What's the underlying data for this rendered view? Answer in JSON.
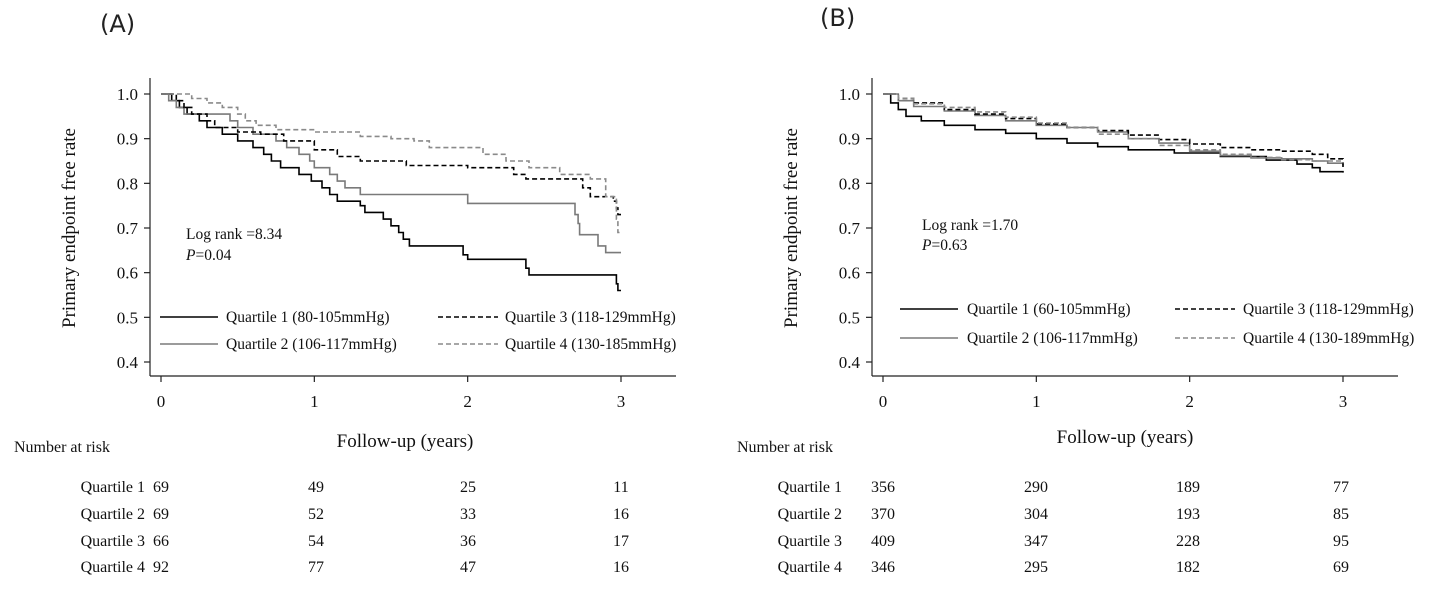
{
  "chart_data": [
    {
      "type": "line",
      "subtype": "kaplan-meier",
      "panel_label": "(A)",
      "xlabel": "Follow-up (years)",
      "ylabel": "Primary endpoint free rate",
      "xlim": [
        0,
        3
      ],
      "ylim": [
        0.4,
        1.0
      ],
      "x_ticks": [
        "0",
        "1",
        "2",
        "3"
      ],
      "y_ticks": [
        "1.0",
        "0.9",
        "0.8",
        "0.7",
        "0.6",
        "0.5",
        "0.4"
      ],
      "grid": false,
      "annotation": {
        "logrank": "Log rank =8.34",
        "p_label": "P",
        "p_value": "=0.04"
      },
      "legend_position": "bottom",
      "series": [
        {
          "name": "Quartile 1 (80-105mmHg)",
          "color": "#000000",
          "dash": "solid",
          "points": [
            [
              0,
              1.0
            ],
            [
              0.07,
              0.985
            ],
            [
              0.12,
              0.97
            ],
            [
              0.17,
              0.955
            ],
            [
              0.25,
              0.94
            ],
            [
              0.3,
              0.925
            ],
            [
              0.4,
              0.91
            ],
            [
              0.5,
              0.895
            ],
            [
              0.6,
              0.88
            ],
            [
              0.67,
              0.865
            ],
            [
              0.72,
              0.85
            ],
            [
              0.78,
              0.835
            ],
            [
              0.9,
              0.82
            ],
            [
              0.98,
              0.805
            ],
            [
              1.05,
              0.79
            ],
            [
              1.1,
              0.775
            ],
            [
              1.15,
              0.76
            ],
            [
              1.3,
              0.75
            ],
            [
              1.33,
              0.735
            ],
            [
              1.45,
              0.72
            ],
            [
              1.5,
              0.705
            ],
            [
              1.55,
              0.69
            ],
            [
              1.58,
              0.675
            ],
            [
              1.62,
              0.66
            ],
            [
              1.97,
              0.64
            ],
            [
              2.0,
              0.63
            ],
            [
              2.38,
              0.61
            ],
            [
              2.4,
              0.595
            ],
            [
              2.97,
              0.575
            ],
            [
              2.98,
              0.56
            ],
            [
              3.0,
              0.56
            ]
          ]
        },
        {
          "name": "Quartile 2 (106-117mmHg)",
          "color": "#7a7a7a",
          "dash": "solid",
          "points": [
            [
              0,
              1.0
            ],
            [
              0.05,
              0.985
            ],
            [
              0.1,
              0.97
            ],
            [
              0.15,
              0.955
            ],
            [
              0.45,
              0.94
            ],
            [
              0.5,
              0.925
            ],
            [
              0.6,
              0.91
            ],
            [
              0.75,
              0.895
            ],
            [
              0.82,
              0.88
            ],
            [
              0.9,
              0.865
            ],
            [
              0.97,
              0.85
            ],
            [
              1.0,
              0.835
            ],
            [
              1.1,
              0.82
            ],
            [
              1.15,
              0.805
            ],
            [
              1.2,
              0.79
            ],
            [
              1.3,
              0.775
            ],
            [
              2.0,
              0.755
            ],
            [
              2.7,
              0.73
            ],
            [
              2.72,
              0.71
            ],
            [
              2.73,
              0.685
            ],
            [
              2.85,
              0.66
            ],
            [
              2.9,
              0.645
            ],
            [
              3.0,
              0.645
            ]
          ]
        },
        {
          "name": "Quartile 3 (118-129mmHg)",
          "color": "#000000",
          "dash": "dashed",
          "points": [
            [
              0,
              1.0
            ],
            [
              0.1,
              0.985
            ],
            [
              0.15,
              0.97
            ],
            [
              0.2,
              0.955
            ],
            [
              0.3,
              0.94
            ],
            [
              0.35,
              0.925
            ],
            [
              0.5,
              0.915
            ],
            [
              0.65,
              0.91
            ],
            [
              0.8,
              0.895
            ],
            [
              1.0,
              0.875
            ],
            [
              1.15,
              0.86
            ],
            [
              1.3,
              0.85
            ],
            [
              1.6,
              0.84
            ],
            [
              2.0,
              0.835
            ],
            [
              2.3,
              0.82
            ],
            [
              2.38,
              0.81
            ],
            [
              2.75,
              0.79
            ],
            [
              2.8,
              0.77
            ],
            [
              2.95,
              0.76
            ],
            [
              2.97,
              0.745
            ],
            [
              2.98,
              0.73
            ],
            [
              3.0,
              0.73
            ]
          ]
        },
        {
          "name": "Quartile 4 (130-185mmHg)",
          "color": "#8a8a8a",
          "dash": "dashed",
          "points": [
            [
              0,
              1.0
            ],
            [
              0.2,
              0.99
            ],
            [
              0.3,
              0.98
            ],
            [
              0.4,
              0.97
            ],
            [
              0.5,
              0.955
            ],
            [
              0.55,
              0.94
            ],
            [
              0.62,
              0.93
            ],
            [
              0.75,
              0.92
            ],
            [
              1.0,
              0.915
            ],
            [
              1.3,
              0.905
            ],
            [
              1.5,
              0.9
            ],
            [
              1.65,
              0.895
            ],
            [
              1.75,
              0.88
            ],
            [
              2.1,
              0.865
            ],
            [
              2.25,
              0.85
            ],
            [
              2.4,
              0.835
            ],
            [
              2.6,
              0.82
            ],
            [
              2.8,
              0.81
            ],
            [
              2.9,
              0.77
            ],
            [
              2.97,
              0.72
            ],
            [
              2.98,
              0.69
            ],
            [
              3.0,
              0.69
            ]
          ]
        }
      ],
      "risk_table": {
        "title": "Number at risk",
        "rows": [
          {
            "label": "Quartile 1",
            "values": [
              "69",
              "49",
              "25",
              "11"
            ]
          },
          {
            "label": "Quartile 2",
            "values": [
              "69",
              "52",
              "33",
              "16"
            ]
          },
          {
            "label": "Quartile 3",
            "values": [
              "66",
              "54",
              "36",
              "17"
            ]
          },
          {
            "label": "Quartile 4",
            "values": [
              "92",
              "77",
              "47",
              "16"
            ]
          }
        ]
      }
    },
    {
      "type": "line",
      "subtype": "kaplan-meier",
      "panel_label": "(B)",
      "xlabel": "Follow-up (years)",
      "ylabel": "Primary endpoint free rate",
      "xlim": [
        0,
        3
      ],
      "ylim": [
        0.4,
        1.0
      ],
      "x_ticks": [
        "0",
        "1",
        "2",
        "3"
      ],
      "y_ticks": [
        "1.0",
        "0.9",
        "0.8",
        "0.7",
        "0.6",
        "0.5",
        "0.4"
      ],
      "grid": false,
      "annotation": {
        "logrank": "Log rank =1.70",
        "p_label": "P",
        "p_value": "=0.63"
      },
      "legend_position": "bottom",
      "series": [
        {
          "name": "Quartile 1 (60-105mmHg)",
          "color": "#000000",
          "dash": "solid",
          "points": [
            [
              0,
              1.0
            ],
            [
              0.05,
              0.98
            ],
            [
              0.1,
              0.965
            ],
            [
              0.15,
              0.95
            ],
            [
              0.25,
              0.94
            ],
            [
              0.4,
              0.93
            ],
            [
              0.6,
              0.92
            ],
            [
              0.8,
              0.912
            ],
            [
              1.0,
              0.9
            ],
            [
              1.2,
              0.89
            ],
            [
              1.4,
              0.882
            ],
            [
              1.6,
              0.875
            ],
            [
              1.9,
              0.868
            ],
            [
              2.2,
              0.86
            ],
            [
              2.5,
              0.852
            ],
            [
              2.7,
              0.843
            ],
            [
              2.8,
              0.835
            ],
            [
              2.85,
              0.826
            ],
            [
              3.0,
              0.824
            ]
          ]
        },
        {
          "name": "Quartile 2 (106-117mmHg)",
          "color": "#7a7a7a",
          "dash": "solid",
          "points": [
            [
              0,
              1.0
            ],
            [
              0.1,
              0.985
            ],
            [
              0.2,
              0.972
            ],
            [
              0.4,
              0.962
            ],
            [
              0.6,
              0.952
            ],
            [
              0.8,
              0.94
            ],
            [
              1.0,
              0.93
            ],
            [
              1.2,
              0.925
            ],
            [
              1.4,
              0.915
            ],
            [
              1.6,
              0.9
            ],
            [
              1.8,
              0.89
            ],
            [
              2.0,
              0.872
            ],
            [
              2.2,
              0.862
            ],
            [
              2.4,
              0.857
            ],
            [
              2.6,
              0.855
            ],
            [
              2.8,
              0.85
            ],
            [
              2.9,
              0.845
            ],
            [
              3.0,
              0.84
            ]
          ]
        },
        {
          "name": "Quartile 3 (118-129mmHg)",
          "color": "#000000",
          "dash": "dashed",
          "points": [
            [
              0,
              1.0
            ],
            [
              0.1,
              0.99
            ],
            [
              0.2,
              0.98
            ],
            [
              0.4,
              0.965
            ],
            [
              0.6,
              0.955
            ],
            [
              0.8,
              0.945
            ],
            [
              1.0,
              0.933
            ],
            [
              1.2,
              0.925
            ],
            [
              1.4,
              0.918
            ],
            [
              1.6,
              0.908
            ],
            [
              1.8,
              0.898
            ],
            [
              2.0,
              0.888
            ],
            [
              2.2,
              0.88
            ],
            [
              2.4,
              0.875
            ],
            [
              2.6,
              0.872
            ],
            [
              2.8,
              0.865
            ],
            [
              2.9,
              0.855
            ],
            [
              3.0,
              0.835
            ]
          ]
        },
        {
          "name": "Quartile 4 (130-189mmHg)",
          "color": "#8a8a8a",
          "dash": "dashed",
          "points": [
            [
              0,
              1.0
            ],
            [
              0.1,
              0.99
            ],
            [
              0.2,
              0.978
            ],
            [
              0.4,
              0.97
            ],
            [
              0.6,
              0.96
            ],
            [
              0.8,
              0.948
            ],
            [
              1.0,
              0.935
            ],
            [
              1.2,
              0.925
            ],
            [
              1.4,
              0.91
            ],
            [
              1.6,
              0.9
            ],
            [
              1.8,
              0.885
            ],
            [
              2.0,
              0.875
            ],
            [
              2.2,
              0.865
            ],
            [
              2.4,
              0.858
            ],
            [
              2.6,
              0.853
            ],
            [
              2.8,
              0.85
            ],
            [
              3.0,
              0.845
            ]
          ]
        }
      ],
      "risk_table": {
        "title": "Number at risk",
        "rows": [
          {
            "label": "Quartile 1",
            "values": [
              "356",
              "290",
              "189",
              "77"
            ]
          },
          {
            "label": "Quartile 2",
            "values": [
              "370",
              "304",
              "193",
              "85"
            ]
          },
          {
            "label": "Quartile 3",
            "values": [
              "409",
              "347",
              "228",
              "95"
            ]
          },
          {
            "label": "Quartile 4",
            "values": [
              "346",
              "295",
              "182",
              "69"
            ]
          }
        ]
      }
    }
  ]
}
